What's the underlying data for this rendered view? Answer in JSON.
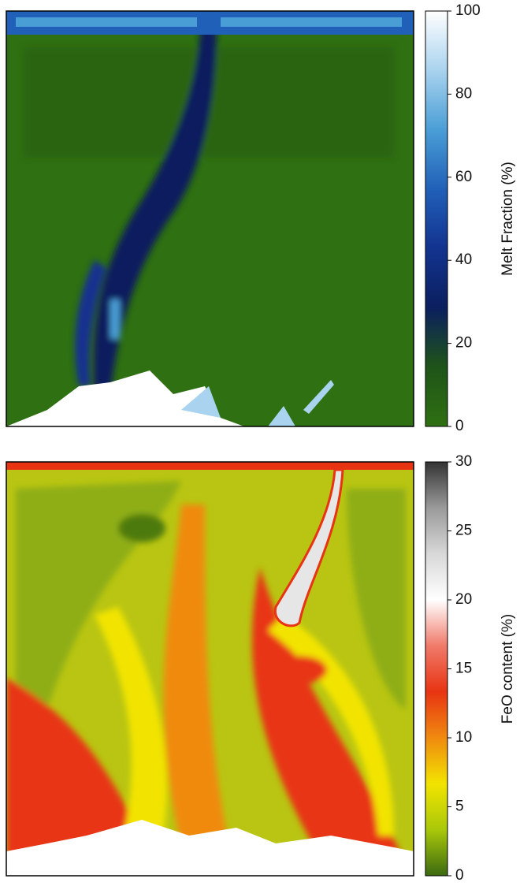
{
  "chart_data": [
    {
      "type": "heatmap",
      "colorbar": {
        "label": "Melt Fraction (%)",
        "lim": [
          0,
          100
        ],
        "ticks": [
          0,
          20,
          40,
          60,
          80,
          100
        ],
        "colors": [
          "#2f7012",
          "#1f5418",
          "#0b1f5e",
          "#12338f",
          "#2160b8",
          "#4a9ed6",
          "#a9d3ee",
          "#ffffff"
        ]
      }
    },
    {
      "type": "heatmap",
      "colorbar": {
        "label": "FeO content (%)",
        "lim": [
          0,
          30
        ],
        "ticks": [
          0,
          5,
          10,
          15,
          20,
          25,
          30
        ],
        "colors": [
          "#3b6a10",
          "#a9c80a",
          "#f2e400",
          "#f08a10",
          "#e83412",
          "#f07a6a",
          "#ffffff",
          "#d8d8d8",
          "#9a9a9a",
          "#333333"
        ]
      }
    }
  ]
}
